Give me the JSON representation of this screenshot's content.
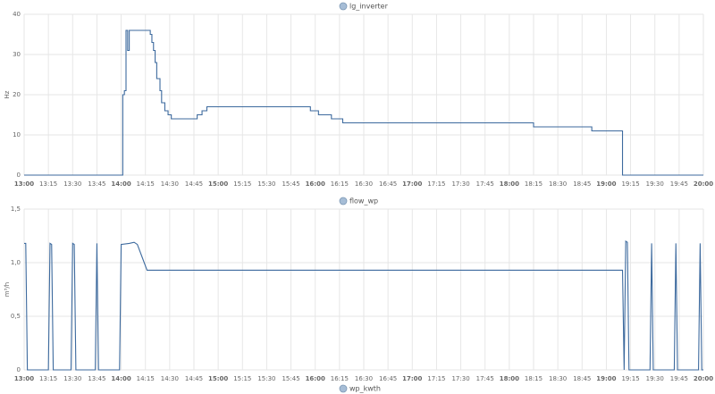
{
  "chart_data": [
    {
      "type": "line",
      "interpolation": "step-after",
      "y_label": "Hz",
      "grid": true,
      "x": [
        "13:00",
        "14:00",
        "14:01",
        "14:02",
        "14:03",
        "14:04",
        "14:05",
        "14:18",
        "14:19",
        "14:20",
        "14:21",
        "14:22",
        "14:24",
        "14:25",
        "14:27",
        "14:29",
        "14:31",
        "14:47",
        "14:50",
        "14:53",
        "15:57",
        "16:02",
        "16:10",
        "16:17",
        "18:15",
        "18:51",
        "19:10",
        "20:00"
      ],
      "series": [
        {
          "name": "lg_inverter",
          "color": "#3d6a9e",
          "values": [
            0,
            0,
            20,
            21,
            36,
            31,
            36,
            35,
            33,
            31,
            28,
            24,
            21,
            18,
            16,
            15,
            14,
            15,
            16,
            17,
            16,
            15,
            14,
            13,
            12,
            11,
            0,
            0
          ]
        }
      ],
      "xlim": [
        "13:00",
        "20:00"
      ],
      "xticks": [
        "13:00",
        "13:15",
        "13:30",
        "13:45",
        "14:00",
        "14:15",
        "14:30",
        "14:45",
        "15:00",
        "15:15",
        "15:30",
        "15:45",
        "16:00",
        "16:15",
        "16:30",
        "16:45",
        "17:00",
        "17:15",
        "17:30",
        "17:45",
        "18:00",
        "18:15",
        "18:30",
        "18:45",
        "19:00",
        "19:15",
        "19:30",
        "19:45",
        "20:00"
      ],
      "ylim": [
        0,
        40
      ],
      "yticks": [
        0,
        10,
        20,
        30,
        40
      ]
    },
    {
      "type": "line",
      "interpolation": "linear",
      "y_label": "m³/h",
      "grid": true,
      "x": [
        "13:00",
        "13:01",
        "13:02",
        "13:15",
        "13:16",
        "13:17",
        "13:18",
        "13:29",
        "13:30",
        "13:31",
        "13:32",
        "13:44",
        "13:45",
        "13:46",
        "13:59",
        "14:00",
        "14:05",
        "14:08",
        "14:10",
        "14:13",
        "14:16",
        "15:00",
        "16:00",
        "17:00",
        "18:00",
        "19:08",
        "19:10",
        "19:11",
        "19:12",
        "19:13",
        "19:14",
        "19:27",
        "19:28",
        "19:29",
        "19:42",
        "19:43",
        "19:44",
        "19:57",
        "19:58",
        "19:59",
        "20:00"
      ],
      "series": [
        {
          "name": "flow_wp",
          "color": "#3d6a9e",
          "values": [
            1.18,
            1.18,
            0,
            0,
            1.18,
            1.17,
            0,
            0,
            1.18,
            1.17,
            0,
            0,
            1.18,
            0,
            0,
            1.17,
            1.18,
            1.19,
            1.17,
            1.05,
            0.93,
            0.93,
            0.93,
            0.93,
            0.93,
            0.93,
            0.93,
            0,
            1.2,
            1.19,
            0,
            0,
            1.18,
            0,
            0,
            1.18,
            0,
            0,
            1.18,
            0,
            0
          ]
        }
      ],
      "xlim": [
        "13:00",
        "20:00"
      ],
      "xticks": [
        "13:00",
        "13:15",
        "13:30",
        "13:45",
        "14:00",
        "14:15",
        "14:30",
        "14:45",
        "15:00",
        "15:15",
        "15:30",
        "15:45",
        "16:00",
        "16:15",
        "16:30",
        "16:45",
        "17:00",
        "17:15",
        "17:30",
        "17:45",
        "18:00",
        "18:15",
        "18:30",
        "18:45",
        "19:00",
        "19:15",
        "19:30",
        "19:45",
        "20:00"
      ],
      "ylim": [
        0,
        1.5
      ],
      "yticks": [
        0,
        {
          "value": 0.5,
          "label": "0,5"
        },
        {
          "value": 1,
          "label": "1,0"
        },
        {
          "value": 1.5,
          "label": "1,5"
        }
      ]
    }
  ],
  "next_panel_legend": "wp_kwth"
}
